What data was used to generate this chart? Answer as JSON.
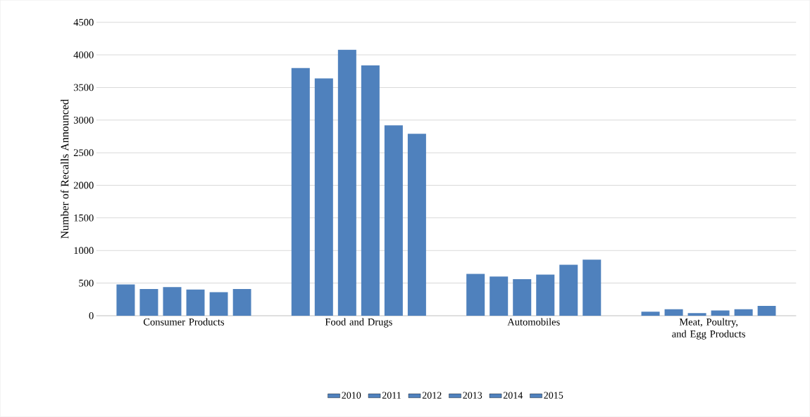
{
  "chart_data": {
    "type": "bar",
    "ylabel": "Number of Recalls Announced",
    "categories": [
      "Consumer Products",
      "Food and Drugs",
      "Automobiles",
      "Meat, Poultry, and Egg Products"
    ],
    "series": [
      {
        "name": "2010",
        "color": "#4f81bd",
        "values": [
          480,
          3800,
          640,
          60
        ]
      },
      {
        "name": "2011",
        "color": "#4f81bd",
        "values": [
          410,
          3640,
          600,
          100
        ]
      },
      {
        "name": "2012",
        "color": "#4f81bd",
        "values": [
          440,
          4080,
          560,
          40
        ]
      },
      {
        "name": "2013",
        "color": "#4f81bd",
        "values": [
          400,
          3840,
          630,
          80
        ]
      },
      {
        "name": "2014",
        "color": "#4f81bd",
        "values": [
          360,
          2920,
          780,
          100
        ]
      },
      {
        "name": "2015",
        "color": "#4f81bd",
        "values": [
          410,
          2790,
          860,
          150
        ]
      }
    ],
    "ylim": [
      0,
      4500
    ],
    "yticks": [
      0,
      500,
      1000,
      1500,
      2000,
      2500,
      3000,
      3500,
      4000,
      4500
    ],
    "grid": "y",
    "legend": "bottom"
  }
}
